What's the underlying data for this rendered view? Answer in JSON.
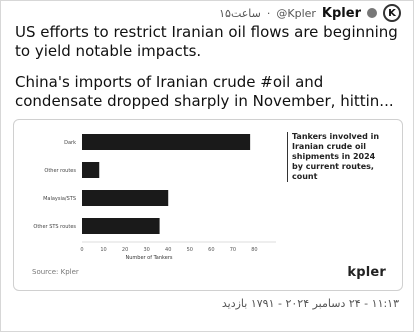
{
  "tweet": {
    "header": {
      "time_ago": "۱۵ساعت",
      "handle": "@Kpler",
      "name": "Kpler",
      "avatar_letter": "K"
    },
    "line1": "US efforts to restrict Iranian oil flows are beginning to yield notable impacts.",
    "line2": "China's imports of Iranian crude #oil and condensate dropped sharply in November, hittin...",
    "date_line": "۱۱:۱۳ - ۲۴ دسامبر ۲۰۲۴ - ۱۷۹۱ بازدید"
  },
  "quote": {
    "chart_data": {
      "type": "bar",
      "orientation": "horizontal",
      "categories": [
        "Dark",
        "Other routes",
        "Malaysia/STS",
        "Other STS routes"
      ],
      "values": [
        78,
        8,
        40,
        36
      ],
      "xlim": [
        0,
        90
      ],
      "x_ticks": [
        "0",
        "10",
        "20",
        "30",
        "40",
        "50",
        "60",
        "70",
        "80"
      ],
      "xlabel": "Number of Tankers",
      "side_title": "Tankers involved in Iranian crude oil shipments in 2024 by current routes, count"
    },
    "footer_left": "Source: Kpler",
    "logo": "kpler"
  },
  "colors": {
    "bar": "#1a1a1a",
    "text": "#111111",
    "muted": "#555555"
  }
}
